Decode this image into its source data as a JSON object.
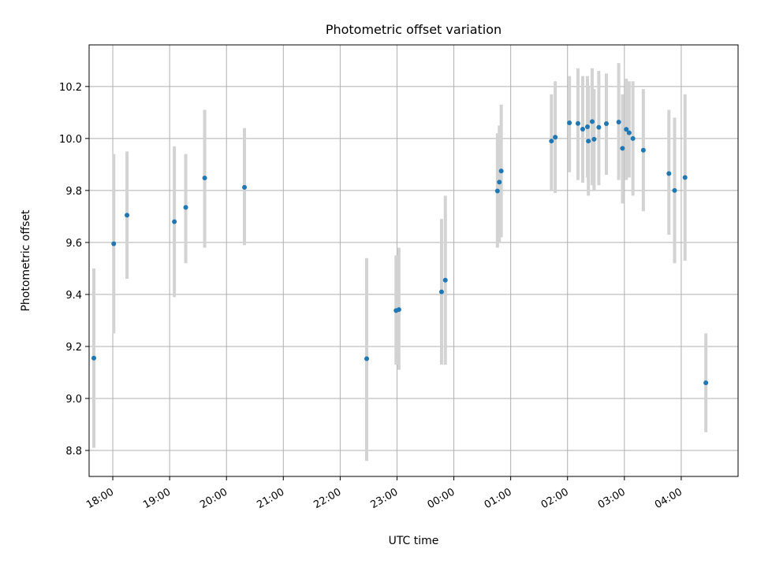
{
  "chart_data": {
    "type": "scatter",
    "title": "Photometric offset variation",
    "xlabel": "UTC time",
    "ylabel": "Photometric offset",
    "xlim": [
      "17:35",
      "29:00"
    ],
    "ylim": [
      8.7,
      10.36
    ],
    "grid": true,
    "x_ticks": [
      "18:00",
      "19:00",
      "20:00",
      "21:00",
      "22:00",
      "23:00",
      "00:00",
      "01:00",
      "02:00",
      "03:00",
      "04:00"
    ],
    "y_ticks": [
      8.8,
      9.0,
      9.2,
      9.4,
      9.6,
      9.8,
      10.0,
      10.2
    ],
    "colors": {
      "points": "#1f77b4",
      "errorbars": "#d3d3d3",
      "grid": "#b0b0b0"
    },
    "points": [
      {
        "t": "17:40",
        "y": 9.155,
        "lo": 8.81,
        "hi": 9.5
      },
      {
        "t": "18:01",
        "y": 9.595,
        "lo": 9.25,
        "hi": 9.94
      },
      {
        "t": "18:15",
        "y": 9.705,
        "lo": 9.46,
        "hi": 9.95
      },
      {
        "t": "19:05",
        "y": 9.68,
        "lo": 9.39,
        "hi": 9.97
      },
      {
        "t": "19:17",
        "y": 9.735,
        "lo": 9.52,
        "hi": 9.94
      },
      {
        "t": "19:37",
        "y": 9.848,
        "lo": 9.58,
        "hi": 10.11
      },
      {
        "t": "20:19",
        "y": 9.812,
        "lo": 9.59,
        "hi": 10.04
      },
      {
        "t": "22:28",
        "y": 9.153,
        "lo": 8.76,
        "hi": 9.54
      },
      {
        "t": "22:59",
        "y": 9.338,
        "lo": 9.13,
        "hi": 9.55
      },
      {
        "t": "23:02",
        "y": 9.342,
        "lo": 9.11,
        "hi": 9.58
      },
      {
        "t": "23:47",
        "y": 9.41,
        "lo": 9.13,
        "hi": 9.69
      },
      {
        "t": "23:51",
        "y": 9.455,
        "lo": 9.13,
        "hi": 9.78
      },
      {
        "t": "00:46",
        "y": 9.798,
        "lo": 9.58,
        "hi": 10.02
      },
      {
        "t": "00:48",
        "y": 9.832,
        "lo": 9.6,
        "hi": 10.05
      },
      {
        "t": "00:50",
        "y": 9.875,
        "lo": 9.62,
        "hi": 10.13
      },
      {
        "t": "01:43",
        "y": 9.99,
        "lo": 9.8,
        "hi": 10.17
      },
      {
        "t": "01:47",
        "y": 10.005,
        "lo": 9.79,
        "hi": 10.22
      },
      {
        "t": "02:02",
        "y": 10.06,
        "lo": 9.87,
        "hi": 10.24
      },
      {
        "t": "02:11",
        "y": 10.058,
        "lo": 9.84,
        "hi": 10.27
      },
      {
        "t": "02:16",
        "y": 10.036,
        "lo": 9.83,
        "hi": 10.24
      },
      {
        "t": "02:21",
        "y": 10.045,
        "lo": 9.85,
        "hi": 10.24
      },
      {
        "t": "02:22",
        "y": 9.99,
        "lo": 9.78,
        "hi": 10.2
      },
      {
        "t": "02:26",
        "y": 10.065,
        "lo": 9.82,
        "hi": 10.27
      },
      {
        "t": "02:28",
        "y": 9.997,
        "lo": 9.8,
        "hi": 10.19
      },
      {
        "t": "02:33",
        "y": 10.043,
        "lo": 9.82,
        "hi": 10.26
      },
      {
        "t": "02:41",
        "y": 10.057,
        "lo": 9.86,
        "hi": 10.25
      },
      {
        "t": "02:54",
        "y": 10.063,
        "lo": 9.84,
        "hi": 10.29
      },
      {
        "t": "02:58",
        "y": 9.962,
        "lo": 9.75,
        "hi": 10.17
      },
      {
        "t": "03:02",
        "y": 10.035,
        "lo": 9.84,
        "hi": 10.23
      },
      {
        "t": "03:05",
        "y": 10.022,
        "lo": 9.85,
        "hi": 10.22
      },
      {
        "t": "03:09",
        "y": 10.0,
        "lo": 9.78,
        "hi": 10.22
      },
      {
        "t": "03:20",
        "y": 9.955,
        "lo": 9.72,
        "hi": 10.19
      },
      {
        "t": "03:47",
        "y": 9.865,
        "lo": 9.63,
        "hi": 10.11
      },
      {
        "t": "03:53",
        "y": 9.8,
        "lo": 9.52,
        "hi": 10.08
      },
      {
        "t": "04:04",
        "y": 9.85,
        "lo": 9.53,
        "hi": 10.17
      },
      {
        "t": "04:26",
        "y": 9.06,
        "lo": 8.87,
        "hi": 9.25
      }
    ]
  }
}
